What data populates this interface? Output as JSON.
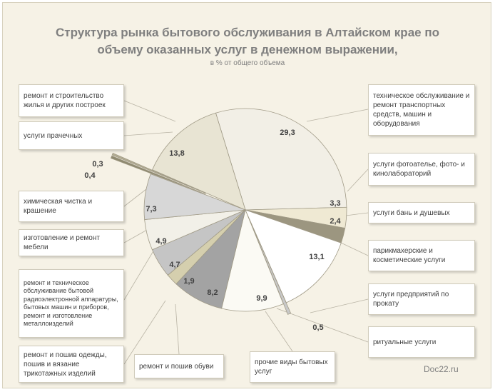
{
  "title": "Структура рынка бытового обслуживания в Алтайском крае по\nобъему оказанных услуг в денежном выражении,",
  "subtitle": "в % от общего объема",
  "watermark": "Doc22.ru",
  "chart_data": {
    "type": "pie",
    "title": "Структура рынка бытового обслуживания в Алтайском крае по объему оказанных услуг в денежном выражении,",
    "subtitle": "в % от общего объема",
    "slices": [
      {
        "label": "техническое обслуживание и ремонт транспортных средств, машин и оборудования",
        "value": 29.3,
        "value_label": "29,3",
        "color": "#f2efe6"
      },
      {
        "label": "услуги фотоателье, фото- и кинолабораторий",
        "value": 3.3,
        "value_label": "3,3",
        "color": "#efe9d3"
      },
      {
        "label": "услуги бань и душевых",
        "value": 2.4,
        "value_label": "2,4",
        "color": "#9c9680"
      },
      {
        "label": "парикмахерские и косметические услуги",
        "value": 13.1,
        "value_label": "13,1",
        "color": "#ffffff"
      },
      {
        "label": "услуги предприятий по прокату",
        "value": 0.5,
        "value_label": "0,5",
        "color": "#c8c8c8"
      },
      {
        "label": "ритуальные услуги",
        "value": 9.9,
        "value_label": "9,9",
        "color": "#fbfaf4"
      },
      {
        "label": "прочие виды бытовых услуг",
        "value": 8.2,
        "value_label": "8,2",
        "color": "#a3a3a3"
      },
      {
        "label": "ремонт и пошив обуви",
        "value": 1.9,
        "value_label": "1,9",
        "color": "#d5cfae"
      },
      {
        "label": "ремонт и пошив одежды, пошив и вязание трикотажных изделий",
        "value": 4.7,
        "value_label": "4,7",
        "color": "#c5c5c5"
      },
      {
        "label": "ремонт и техническое обслуживание бытовой радиоэлектронной аппаратуры, бытовых машин и приборов, ремонт и изготовление металлоизделий",
        "value": 4.9,
        "value_label": "4,9",
        "color": "#f2f0e8"
      },
      {
        "label": "изготовление и ремонт мебели",
        "value": 7.3,
        "value_label": "7,3",
        "color": "#d7d7d7"
      },
      {
        "label": "химическая чистка и крашение",
        "value": 0.4,
        "value_label": "0,4",
        "color": "#8f8a70"
      },
      {
        "label": "услуги прачечных",
        "value": 0.3,
        "value_label": "0,3",
        "color": "#b3ad93"
      },
      {
        "label": "ремонт и строительство жилья и других построек",
        "value": 13.8,
        "value_label": "13,8",
        "color": "#e8e4d3"
      }
    ]
  }
}
